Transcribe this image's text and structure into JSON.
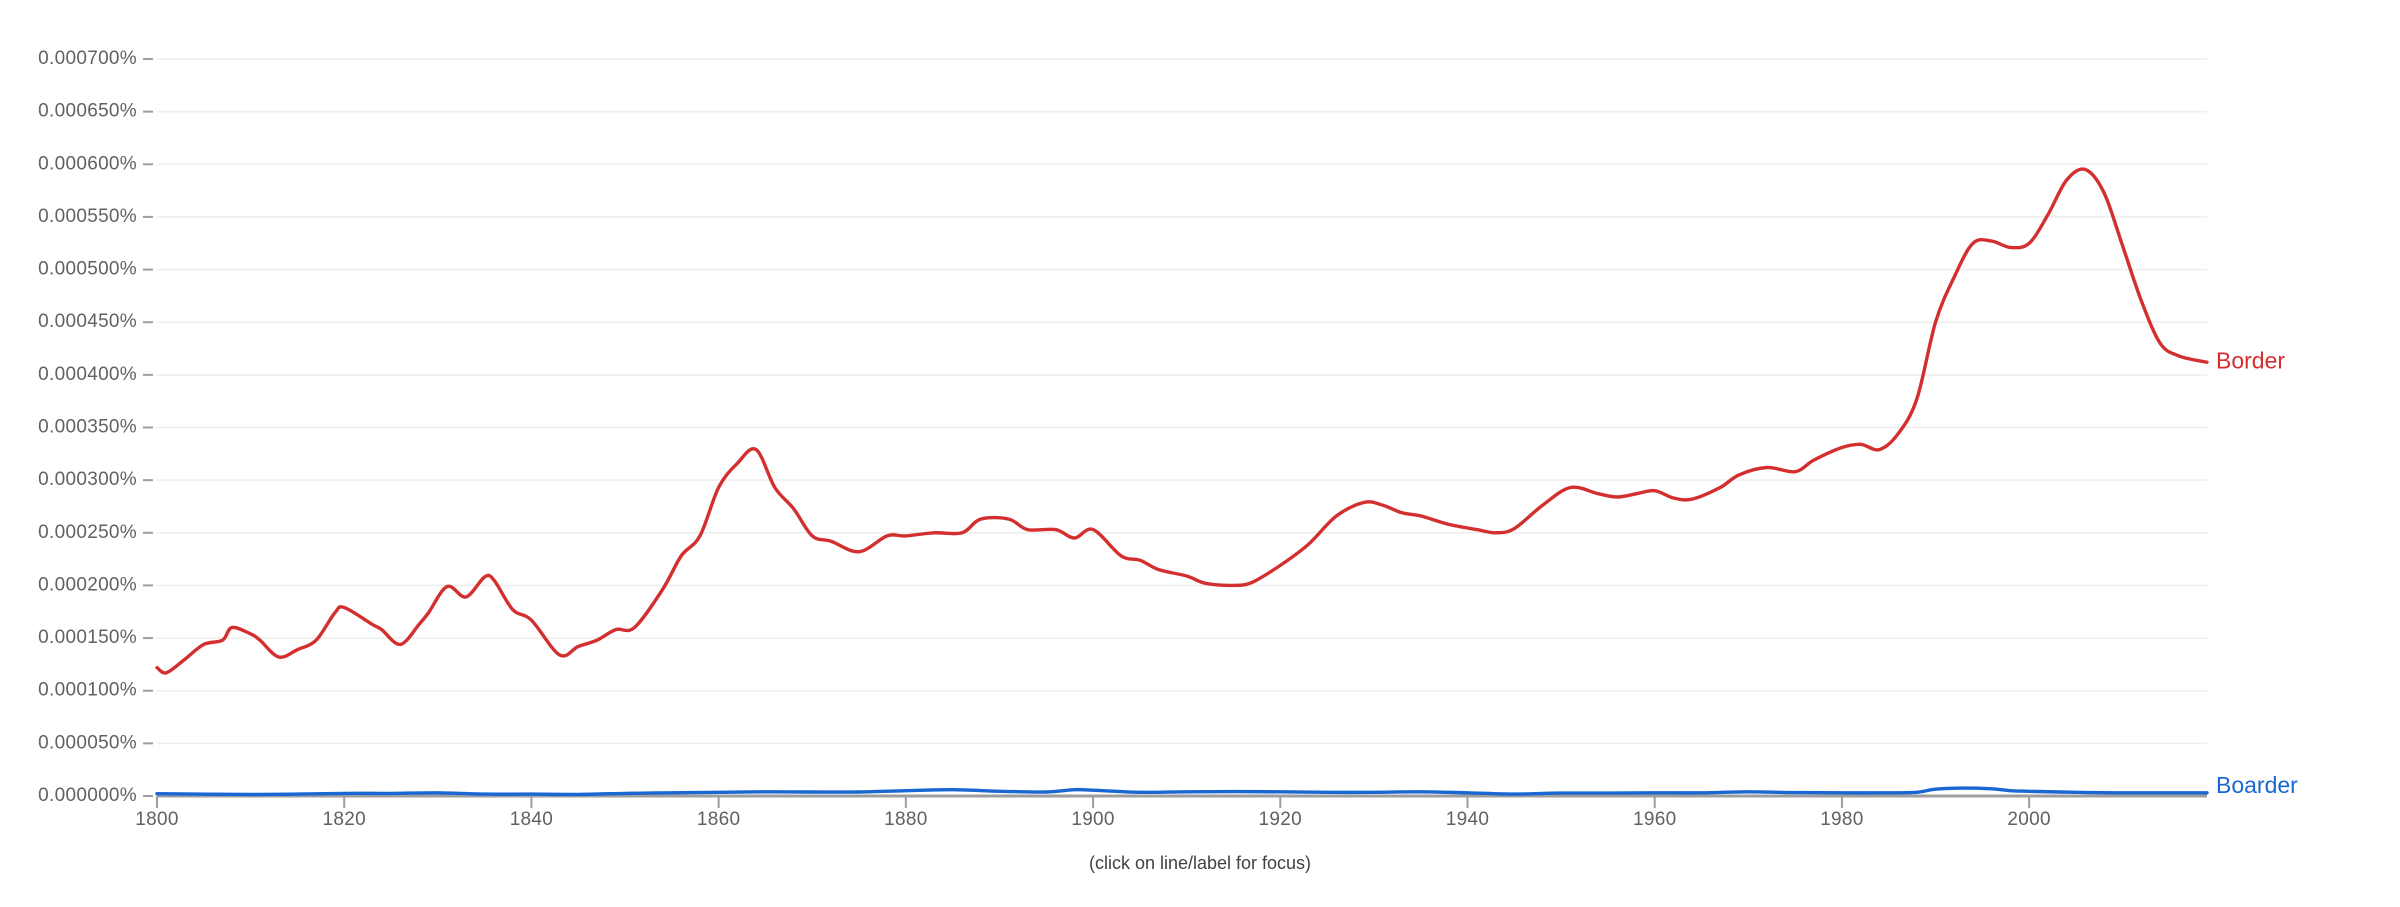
{
  "footer": {
    "hint": "(click on line/label for focus)"
  },
  "chart_data": {
    "type": "line",
    "title": "",
    "xlabel": "",
    "ylabel": "",
    "xlim": [
      1800,
      2019
    ],
    "ylim": [
      0,
      0.0007
    ],
    "grid": true,
    "legend_position": "inline-right",
    "y_ticks": [
      "0.000000%",
      "0.000050%",
      "0.000100%",
      "0.000150%",
      "0.000200%",
      "0.000250%",
      "0.000300%",
      "0.000350%",
      "0.000400%",
      "0.000450%",
      "0.000500%",
      "0.000550%",
      "0.000600%",
      "0.000650%",
      "0.000700%"
    ],
    "y_tick_values": [
      0,
      5e-05,
      0.0001,
      0.00015,
      0.0002,
      0.00025,
      0.0003,
      0.00035,
      0.0004,
      0.00045,
      0.0005,
      0.00055,
      0.0006,
      0.00065,
      0.0007
    ],
    "x_ticks": [
      "1800",
      "1820",
      "1840",
      "1860",
      "1880",
      "1900",
      "1920",
      "1940",
      "1960",
      "1980",
      "2000"
    ],
    "x_tick_values": [
      1800,
      1820,
      1840,
      1860,
      1880,
      1900,
      1920,
      1940,
      1960,
      1980,
      2000
    ],
    "series": [
      {
        "name": "Border",
        "color": "#d32f2f",
        "x": [
          1800,
          1801,
          1803,
          1805,
          1807,
          1808,
          1810,
          1811,
          1813,
          1815,
          1817,
          1819,
          1820,
          1823,
          1824,
          1826,
          1828,
          1829,
          1831,
          1833,
          1835,
          1836,
          1838,
          1840,
          1843,
          1845,
          1847,
          1849,
          1851,
          1854,
          1856,
          1858,
          1860,
          1862,
          1864,
          1866,
          1868,
          1870,
          1872,
          1875,
          1878,
          1880,
          1883,
          1886,
          1888,
          1891,
          1893,
          1896,
          1898,
          1900,
          1903,
          1905,
          1907,
          1910,
          1912,
          1915,
          1917,
          1920,
          1923,
          1926,
          1929,
          1931,
          1933,
          1935,
          1938,
          1941,
          1943,
          1945,
          1948,
          1951,
          1954,
          1956,
          1958,
          1960,
          1962,
          1964,
          1967,
          1969,
          1972,
          1975,
          1977,
          1980,
          1982,
          1984,
          1986,
          1988,
          1990,
          1992,
          1994,
          1996,
          1998,
          2000,
          2002,
          2004,
          2006,
          2008,
          2010,
          2012,
          2014,
          2016,
          2019
        ],
        "values": [
          0.000122,
          0.000117,
          0.00013,
          0.000144,
          0.000148,
          0.00016,
          0.000154,
          0.000148,
          0.000132,
          0.000139,
          0.000148,
          0.000174,
          0.000179,
          0.000163,
          0.000158,
          0.000144,
          0.000163,
          0.000174,
          0.000199,
          0.000189,
          0.000208,
          0.000205,
          0.000177,
          0.000167,
          0.000134,
          0.000142,
          0.000148,
          0.000158,
          0.00016,
          0.000196,
          0.000228,
          0.000247,
          0.000293,
          0.000316,
          0.000329,
          0.000293,
          0.000273,
          0.000247,
          0.000242,
          0.000232,
          0.000247,
          0.000247,
          0.00025,
          0.00025,
          0.000263,
          0.000263,
          0.000253,
          0.000253,
          0.000245,
          0.000253,
          0.000228,
          0.000224,
          0.000215,
          0.000209,
          0.000202,
          0.0002,
          0.000203,
          0.000219,
          0.000239,
          0.000266,
          0.000279,
          0.000276,
          0.000269,
          0.000266,
          0.000258,
          0.000253,
          0.00025,
          0.000254,
          0.000276,
          0.000293,
          0.000287,
          0.000284,
          0.000287,
          0.00029,
          0.000283,
          0.000282,
          0.000293,
          0.000305,
          0.000312,
          0.000308,
          0.000319,
          0.000331,
          0.000334,
          0.000329,
          0.000344,
          0.000377,
          0.00045,
          0.000493,
          0.000525,
          0.000527,
          0.000521,
          0.000525,
          0.000552,
          0.000585,
          0.000595,
          0.000573,
          0.000522,
          0.00047,
          0.00043,
          0.000418,
          0.000412
        ]
      },
      {
        "name": "Boarder",
        "color": "#1967d2",
        "x": [
          1800,
          1810,
          1815,
          1820,
          1825,
          1830,
          1835,
          1840,
          1845,
          1850,
          1855,
          1860,
          1865,
          1870,
          1875,
          1880,
          1885,
          1890,
          1895,
          1898,
          1900,
          1905,
          1910,
          1915,
          1920,
          1925,
          1930,
          1935,
          1940,
          1945,
          1950,
          1955,
          1960,
          1965,
          1970,
          1975,
          1980,
          1985,
          1988,
          1990,
          1993,
          1996,
          1998,
          2000,
          2005,
          2010,
          2015,
          2019
        ],
        "values": [
          2.2e-06,
          1.5e-06,
          1.8e-06,
          2.5e-06,
          2.5e-06,
          3e-06,
          1.8e-06,
          1.8e-06,
          1.5e-06,
          2.5e-06,
          3e-06,
          3.5e-06,
          4e-06,
          3.8e-06,
          3.8e-06,
          5e-06,
          6e-06,
          4.5e-06,
          3.8e-06,
          6e-06,
          5.5e-06,
          3.5e-06,
          4e-06,
          4.2e-06,
          4e-06,
          3.5e-06,
          3.5e-06,
          4e-06,
          3e-06,
          1.8e-06,
          2.8e-06,
          2.8e-06,
          3e-06,
          3e-06,
          4e-06,
          3.2e-06,
          3e-06,
          3e-06,
          3.5e-06,
          6.5e-06,
          7.5e-06,
          6.8e-06,
          5e-06,
          4.5e-06,
          3.5e-06,
          3e-06,
          3e-06,
          3e-06
        ]
      }
    ]
  }
}
